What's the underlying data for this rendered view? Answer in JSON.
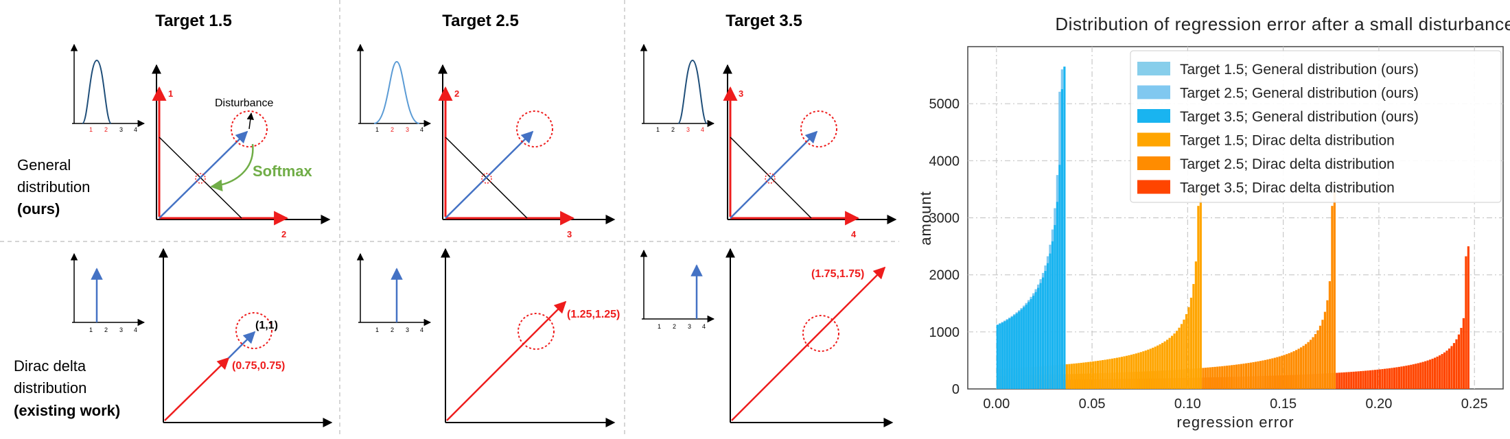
{
  "diagram": {
    "columns": [
      "Target 1.5",
      "Target 2.5",
      "Target 3.5"
    ],
    "rows": {
      "general": {
        "line1": "General",
        "line2": "distribution",
        "line3": "(ours)"
      },
      "dirac": {
        "line1": "Dirac delta",
        "line2": "distribution",
        "line3": "(existing work)"
      }
    },
    "annotations": {
      "disturbance": "Disturbance",
      "softmax": "Softmax"
    },
    "general_axes": [
      {
        "y": "1",
        "x": "2"
      },
      {
        "y": "2",
        "x": "3"
      },
      {
        "y": "3",
        "x": "4"
      }
    ],
    "dirac_points": [
      {
        "inner": "(1,1)",
        "outer": "(0.75,0.75)"
      },
      {
        "inner": "(1.25,1.25)"
      },
      {
        "inner": "(1.75,1.75)"
      }
    ],
    "mini_ticks": [
      "1",
      "2",
      "3",
      "4"
    ],
    "colors": {
      "red": "#ee1c1c",
      "blue": "#4472c4",
      "green": "#70ad47"
    }
  },
  "chart_data": {
    "type": "bar",
    "title": "Distribution of regression error after a small disturbance",
    "xlabel": "regression error",
    "ylabel": "amount",
    "xlim": [
      -0.015,
      0.265
    ],
    "ylim": [
      0,
      6000
    ],
    "xticks": [
      "0.00",
      "0.05",
      "0.10",
      "0.15",
      "0.20",
      "0.25"
    ],
    "yticks": [
      "0",
      "1000",
      "2000",
      "3000",
      "4000",
      "5000"
    ],
    "grid": true,
    "legend_position": "top-right",
    "series": [
      {
        "name": "Target 1.5; General distribution (ours)",
        "color": "#87ceeb",
        "range": [
          0.0,
          0.035
        ],
        "start": 1120,
        "peak": 5600
      },
      {
        "name": "Target 2.5; General distribution (ours)",
        "color": "#80c8f0",
        "range": [
          0.0,
          0.035
        ],
        "start": 1120,
        "peak": 5600
      },
      {
        "name": "Target 3.5; General distribution (ours)",
        "color": "#19b4f0",
        "range": [
          0.0,
          0.036
        ],
        "start": 1110,
        "peak": 5650
      },
      {
        "name": "Target 1.5; Dirac delta distribution",
        "color": "#ffa500",
        "range": [
          0.0,
          0.107
        ],
        "start": 350,
        "peak": 3450
      },
      {
        "name": "Target 2.5; Dirac delta distribution",
        "color": "#ff8c00",
        "range": [
          0.0,
          0.177
        ],
        "start": 230,
        "peak": 3450
      },
      {
        "name": "Target 3.5; Dirac delta distribution",
        "color": "#ff4500",
        "range": [
          0.0,
          0.248
        ],
        "start": 150,
        "peak": 2500
      }
    ]
  }
}
